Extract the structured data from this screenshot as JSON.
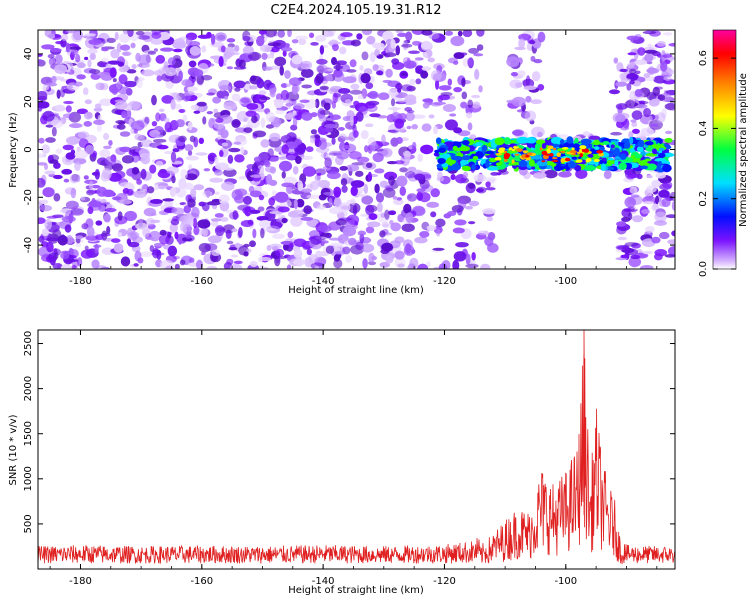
{
  "page_title": "C2E4.2024.105.19.31.R12",
  "colors": {
    "snr_line": "#e02020",
    "spectrogram_low": "#ffffff",
    "spectrogram_mid": "#7a12ff",
    "colormap": [
      "#ffffff",
      "#d8b8ff",
      "#7a12ff",
      "#0010ff",
      "#00e0ff",
      "#00ff40",
      "#ffff00",
      "#ff8000",
      "#ff0000",
      "#ff00a0"
    ]
  },
  "chart_data": [
    {
      "type": "heatmap",
      "title": "C2E4.2024.105.19.31.R12",
      "xlabel": "Height of straight line (km)",
      "ylabel": "Frequency (Hz)",
      "xlim": [
        -187,
        -82
      ],
      "ylim": [
        -50,
        50
      ],
      "x_ticks": [
        -180,
        -160,
        -140,
        -120,
        -100
      ],
      "y_ticks": [
        -40,
        -20,
        0,
        20,
        40
      ],
      "colorbar": {
        "label": "Normalized spectral amplitude",
        "range": [
          0.0,
          0.68
        ],
        "ticks": [
          0.0,
          0.2,
          0.4,
          0.6
        ]
      },
      "features": {
        "signal_band": {
          "x_range": [
            -121,
            -83
          ],
          "freq_center": -2,
          "freq_halfwidth": 6,
          "peak_amplitude": 0.68
        },
        "blank_gaps": [
          {
            "x_range": [
              -114,
              -109
            ],
            "freq_range": [
              5,
              50
            ]
          },
          {
            "x_range": [
              -104,
              -92
            ],
            "freq_range": [
              7,
              50
            ]
          },
          {
            "x_range": [
              -112,
              -91
            ],
            "freq_range": [
              -50,
              -11
            ]
          }
        ]
      }
    },
    {
      "type": "line",
      "xlabel": "Height of straight line (km)",
      "ylabel": "SNR (10 * v/v)",
      "xlim": [
        -187,
        -82
      ],
      "ylim": [
        0,
        2650
      ],
      "x_ticks": [
        -180,
        -160,
        -140,
        -120,
        -100
      ],
      "y_ticks": [
        500,
        1000,
        1500,
        2000,
        2500
      ],
      "series": [
        {
          "x": [
            -187,
            -180,
            -170,
            -160,
            -150,
            -140,
            -130,
            -120,
            -115,
            -112,
            -110,
            -108,
            -106,
            -104,
            -102,
            -100,
            -98,
            -97,
            -96,
            -95,
            -94,
            -93,
            -92,
            -91,
            -90,
            -85,
            -82
          ],
          "y": [
            150,
            160,
            150,
            155,
            150,
            160,
            150,
            165,
            200,
            400,
            550,
            700,
            650,
            1150,
            950,
            1100,
            1400,
            2650,
            1000,
            1850,
            1250,
            950,
            800,
            350,
            160,
            150,
            150
          ]
        }
      ]
    }
  ]
}
